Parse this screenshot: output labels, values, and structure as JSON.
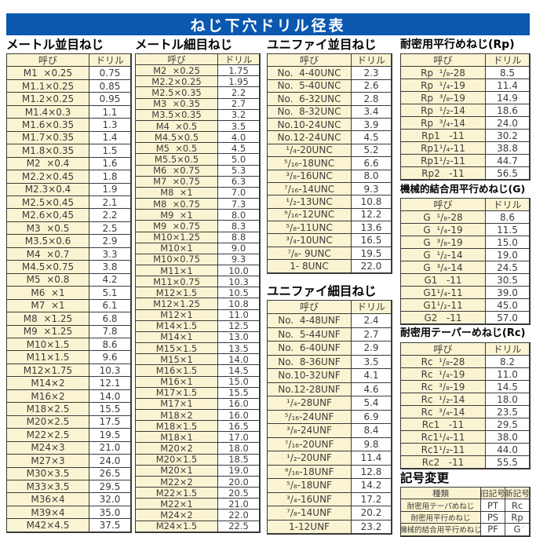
{
  "title": "ねじ下穴ドリル径表",
  "colors": {
    "accent_blue": "#0b58b0",
    "cell_cream": "#fbf4d2",
    "border": "#3a3a3a"
  },
  "footer_mark": "--",
  "sections": {
    "metric_coarse": {
      "title": "メートル並目ねじ",
      "headers": [
        "呼び",
        "ドリル"
      ],
      "rows": [
        [
          "M1  ×0.25",
          "0.75"
        ],
        [
          "M1.1×0.25",
          "0.85"
        ],
        [
          "M1.2×0.25",
          "0.95"
        ],
        [
          "M1.4×0.3",
          "1.1"
        ],
        [
          "M1.6×0.35",
          "1.3"
        ],
        [
          "M1.7×0.35",
          "1.4"
        ],
        [
          "M1.8×0.35",
          "1.5"
        ],
        [
          "M2  ×0.4",
          "1.6"
        ],
        [
          "M2.2×0.45",
          "1.8"
        ],
        [
          "M2.3×0.4",
          "1.9"
        ],
        [
          "M2.5×0.45",
          "2.1"
        ],
        [
          "M2.6×0.45",
          "2.2"
        ],
        [
          "M3  ×0.5",
          "2.5"
        ],
        [
          "M3.5×0.6",
          "2.9"
        ],
        [
          "M4  ×0.7",
          "3.3"
        ],
        [
          "M4.5×0.75",
          "3.8"
        ],
        [
          "M5  ×0.8",
          "4.2"
        ],
        [
          "M6  ×1",
          "5.1"
        ],
        [
          "M7  ×1",
          "6.1"
        ],
        [
          "M8  ×1.25",
          "6.8"
        ],
        [
          "M9  ×1.25",
          "7.8"
        ],
        [
          "M10×1.5",
          "8.6"
        ],
        [
          "M11×1.5",
          "9.6"
        ],
        [
          "M12×1.75",
          "10.3"
        ],
        [
          "M14×2",
          "12.1"
        ],
        [
          "M16×2",
          "14.0"
        ],
        [
          "M18×2.5",
          "15.5"
        ],
        [
          "M20×2.5",
          "17.5"
        ],
        [
          "M22×2.5",
          "19.5"
        ],
        [
          "M24×3",
          "21.0"
        ],
        [
          "M27×3",
          "24.0"
        ],
        [
          "M30×3.5",
          "26.5"
        ],
        [
          "M33×3.5",
          "29.5"
        ],
        [
          "M36×4",
          "32.0"
        ],
        [
          "M39×4",
          "35.0"
        ],
        [
          "M42×4.5",
          "37.5"
        ]
      ]
    },
    "metric_fine": {
      "title": "メートル細目ねじ",
      "headers": [
        "呼び",
        "ドリル"
      ],
      "rows": [
        [
          "M2  ×0.25",
          "1.75"
        ],
        [
          "M2.2×0.25",
          "1.95"
        ],
        [
          "M2.5×0.35",
          "2.2"
        ],
        [
          "M3  ×0.35",
          "2.7"
        ],
        [
          "M3.5×0.35",
          "3.2"
        ],
        [
          "M4  ×0.5",
          "3.5"
        ],
        [
          "M4.5×0.5",
          "4.0"
        ],
        [
          "M5  ×0.5",
          "4.5"
        ],
        [
          "M5.5×0.5",
          "5.0"
        ],
        [
          "M6  ×0.75",
          "5.3"
        ],
        [
          "M7  ×0.75",
          "6.3"
        ],
        [
          "M8  ×1",
          "7.0"
        ],
        [
          "M8  ×0.75",
          "7.3"
        ],
        [
          "M9  ×1",
          "8.0"
        ],
        [
          "M9  ×0.75",
          "8.3"
        ],
        [
          "M10×1.25",
          "8.8"
        ],
        [
          "M10×1",
          "9.0"
        ],
        [
          "M10×0.75",
          "9.3"
        ],
        [
          "M11×1",
          "10.0"
        ],
        [
          "M11×0.75",
          "10.3"
        ],
        [
          "M12×1.5",
          "10.5"
        ],
        [
          "M12×1.25",
          "10.8"
        ],
        [
          "M12×1",
          "11.0"
        ],
        [
          "M14×1.5",
          "12.5"
        ],
        [
          "M14×1",
          "13.0"
        ],
        [
          "M15×1.5",
          "13.5"
        ],
        [
          "M15×1",
          "14.0"
        ],
        [
          "M16×1.5",
          "14.5"
        ],
        [
          "M16×1",
          "15.0"
        ],
        [
          "M17×1.5",
          "15.5"
        ],
        [
          "M17×1",
          "16.0"
        ],
        [
          "M18×2",
          "16.0"
        ],
        [
          "M18×1.5",
          "16.5"
        ],
        [
          "M18×1",
          "17.0"
        ],
        [
          "M20×2",
          "18.0"
        ],
        [
          "M20×1.5",
          "18.5"
        ],
        [
          "M20×1",
          "19.0"
        ],
        [
          "M22×2",
          "20.0"
        ],
        [
          "M22×1.5",
          "20.5"
        ],
        [
          "M22×1",
          "21.0"
        ],
        [
          "M24×2",
          "22.0"
        ],
        [
          "M24×1.5",
          "22.5"
        ]
      ]
    },
    "unified_coarse": {
      "title": "ユニファイ並目ねじ",
      "headers": [
        "呼び",
        "ドリル"
      ],
      "rows": [
        [
          "No.  4-40UNC",
          "2.3"
        ],
        [
          "No.  5-40UNC",
          "2.6"
        ],
        [
          "No.  6-32UNC",
          "2.8"
        ],
        [
          "No.  8-32UNC",
          "3.4"
        ],
        [
          "No.10-24UNC",
          "3.9"
        ],
        [
          "No.12-24UNC",
          "4.5"
        ],
        [
          "¹/₄-20UNC",
          "5.2"
        ],
        [
          "⁵/₁₆-18UNC",
          "6.6"
        ],
        [
          "³/₈-16UNC",
          "8.0"
        ],
        [
          "⁷/₁₆-14UNC",
          "9.3"
        ],
        [
          "¹/₂-13UNC",
          "10.8"
        ],
        [
          "⁹/₁₆-12UNC",
          "12.2"
        ],
        [
          "⁵/₈-11UNC",
          "13.6"
        ],
        [
          "³/₄-10UNC",
          "16.5"
        ],
        [
          "⁷/₈- 9UNC",
          "19.5"
        ],
        [
          "1- 8UNC",
          "22.0"
        ]
      ]
    },
    "unified_fine": {
      "title": "ユニファイ細目ねじ",
      "headers": [
        "呼び",
        "ドリル"
      ],
      "rows": [
        [
          "No.  4-48UNF",
          "2.4"
        ],
        [
          "No.  5-44UNF",
          "2.7"
        ],
        [
          "No.  6-40UNF",
          "2.9"
        ],
        [
          "No.  8-36UNF",
          "3.5"
        ],
        [
          "No.10-32UNF",
          "4.1"
        ],
        [
          "No.12-28UNF",
          "4.6"
        ],
        [
          "¹/₄-28UNF",
          "5.4"
        ],
        [
          "⁵/₁₆-24UNF",
          "6.9"
        ],
        [
          "³/₈-24UNF",
          "8.4"
        ],
        [
          "⁷/₁₆-20UNF",
          "9.8"
        ],
        [
          "¹/₂-20UNF",
          "11.4"
        ],
        [
          "⁹/₁₆-18UNF",
          "12.8"
        ],
        [
          "⁵/₈-18UNF",
          "14.2"
        ],
        [
          "³/₄-16UNF",
          "17.2"
        ],
        [
          "⁷/₈-14UNF",
          "20.2"
        ],
        [
          "1-12UNF",
          "23.2"
        ]
      ]
    },
    "rp": {
      "title": "耐密用平行めねじ(Rp)",
      "headers": [
        "呼び",
        "ドリル"
      ],
      "rows": [
        [
          "Rp  ¹/₈-28",
          "8.5"
        ],
        [
          "Rp  ¹/₄-19",
          "11.4"
        ],
        [
          "Rp  ³/₈-19",
          "14.9"
        ],
        [
          "Rp  ¹/₂-14",
          "18.6"
        ],
        [
          "Rp  ³/₄-14",
          "24.0"
        ],
        [
          "Rp1   -11",
          "30.2"
        ],
        [
          "Rp1¹/₄-11",
          "38.8"
        ],
        [
          "Rp1¹/₂-11",
          "44.7"
        ],
        [
          "Rp2   -11",
          "56.5"
        ]
      ]
    },
    "g": {
      "title": "機械的結合用平行めねじ(G)",
      "headers": [
        "呼び",
        "ドリル"
      ],
      "rows": [
        [
          "G  ¹/₈-28",
          "8.6"
        ],
        [
          "G  ¹/₄-19",
          "11.5"
        ],
        [
          "G  ³/₈-19",
          "15.0"
        ],
        [
          "G  ¹/₂-14",
          "19.0"
        ],
        [
          "G  ³/₄-14",
          "24.5"
        ],
        [
          "G1   -11",
          "30.5"
        ],
        [
          "G1¹/₄-11",
          "39.0"
        ],
        [
          "G1¹/₂-11",
          "45.0"
        ],
        [
          "G2   -11",
          "57.0"
        ]
      ]
    },
    "rc": {
      "title": "耐密用テーパーめねじ(Rc)",
      "headers": [
        "呼び",
        "ドリル"
      ],
      "rows": [
        [
          "Rc  ¹/₈-28",
          "8.2"
        ],
        [
          "Rc  ¹/₄-19",
          "11.0"
        ],
        [
          "Rc  ³/₈-19",
          "14.5"
        ],
        [
          "Rc  ¹/₂-14",
          "18.0"
        ],
        [
          "Rc  ³/₄-14",
          "23.5"
        ],
        [
          "Rc1   -11",
          "29.5"
        ],
        [
          "Rc1¹/₄-11",
          "38.0"
        ],
        [
          "Rc1¹/₂-11",
          "44.0"
        ],
        [
          "Rc2   -11",
          "55.5"
        ]
      ]
    },
    "symbol_change": {
      "title": "記号変更",
      "headers": [
        "種類",
        "旧記号",
        "新記号"
      ],
      "rows": [
        [
          "耐密用テーパめねじ",
          "PT",
          "Rc"
        ],
        [
          "耐密用平行めねじ",
          "PS",
          "Rp"
        ],
        [
          "機械的結合用平行めねじ",
          "PF",
          "G"
        ]
      ]
    }
  }
}
